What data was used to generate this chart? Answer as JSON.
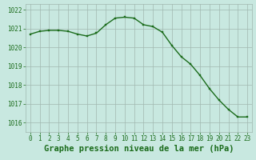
{
  "x": [
    0,
    1,
    2,
    3,
    4,
    5,
    6,
    7,
    8,
    9,
    10,
    11,
    12,
    13,
    14,
    15,
    16,
    17,
    18,
    19,
    20,
    21,
    22,
    23
  ],
  "y": [
    1020.7,
    1020.85,
    1020.9,
    1020.9,
    1020.85,
    1020.7,
    1020.6,
    1020.75,
    1021.2,
    1021.55,
    1021.6,
    1021.55,
    1021.2,
    1021.1,
    1020.8,
    1020.1,
    1019.5,
    1019.1,
    1018.5,
    1017.8,
    1017.2,
    1016.7,
    1016.3,
    1016.3
  ],
  "line_color": "#1a6b1a",
  "marker_color": "#1a6b1a",
  "bg_color": "#c8e8e0",
  "grid_color": "#a0b8b0",
  "xlabel": "Graphe pression niveau de la mer (hPa)",
  "xlabel_color": "#1a6b1a",
  "ylim": [
    1015.5,
    1022.3
  ],
  "xlim": [
    -0.5,
    23.5
  ],
  "yticks": [
    1016,
    1017,
    1018,
    1019,
    1020,
    1021,
    1022
  ],
  "xticks": [
    0,
    1,
    2,
    3,
    4,
    5,
    6,
    7,
    8,
    9,
    10,
    11,
    12,
    13,
    14,
    15,
    16,
    17,
    18,
    19,
    20,
    21,
    22,
    23
  ],
  "tick_color": "#1a6b1a",
  "tick_fontsize": 5.5,
  "xlabel_fontsize": 7.5,
  "line_width": 1.0,
  "marker_size": 2.0
}
